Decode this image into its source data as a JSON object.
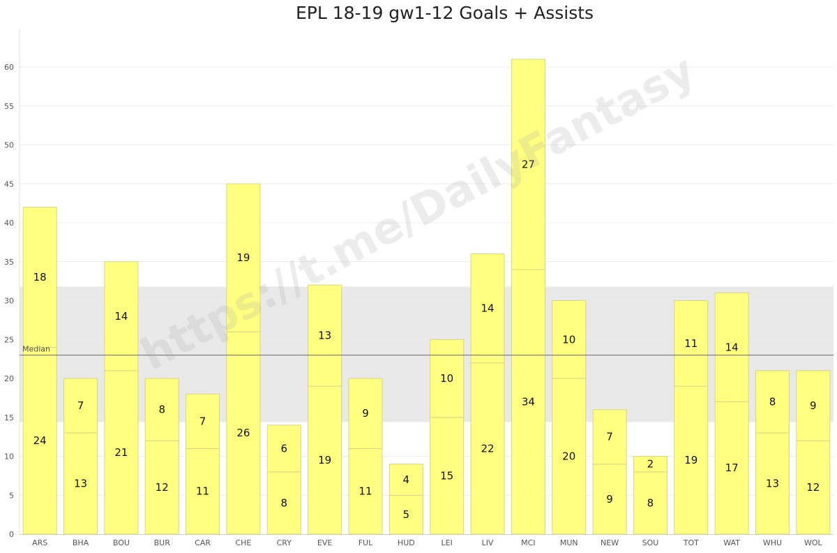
{
  "chart_data": {
    "type": "bar",
    "stacked": true,
    "title": "EPL 18-19 gw1-12 Goals + Assists",
    "categories": [
      "ARS",
      "BHA",
      "BOU",
      "BUR",
      "CAR",
      "CHE",
      "CRY",
      "EVE",
      "FUL",
      "HUD",
      "LEI",
      "LIV",
      "MCI",
      "MUN",
      "NEW",
      "SOU",
      "TOT",
      "WAT",
      "WHU",
      "WOL"
    ],
    "series": [
      {
        "values": [
          24,
          13,
          21,
          12,
          11,
          26,
          8,
          19,
          11,
          5,
          15,
          22,
          34,
          20,
          9,
          8,
          19,
          17,
          13,
          12
        ]
      },
      {
        "values": [
          18,
          7,
          14,
          8,
          7,
          19,
          6,
          13,
          9,
          4,
          10,
          14,
          27,
          10,
          7,
          2,
          11,
          14,
          8,
          9
        ]
      }
    ],
    "ylim": [
      0,
      64
    ],
    "yticks": [
      0,
      5,
      10,
      15,
      20,
      25,
      30,
      35,
      40,
      45,
      50,
      55,
      60
    ],
    "grid": true,
    "reference_line": {
      "label": "Median",
      "value": 23
    },
    "reference_band": {
      "from": 14.4,
      "to": 31.8
    },
    "bar_color": "#ffff80",
    "bar_border": "#d6d685",
    "band_color": "#e9e9e9",
    "median_line_color": "#777777"
  },
  "watermark": "https://t.me/DailyFantasy"
}
